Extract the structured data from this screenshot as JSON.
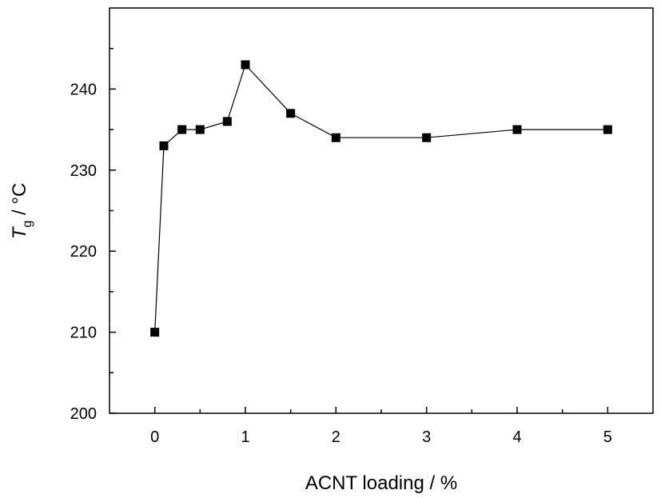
{
  "chart_data": {
    "type": "line",
    "xlabel": "ACNT loading / %",
    "ylabel_main": "T",
    "ylabel_sub": "g",
    "ylabel_unit": " / °C",
    "xlim": [
      -0.5,
      5.5
    ],
    "ylim": [
      200,
      250
    ],
    "xticks": [
      0,
      1,
      2,
      3,
      4,
      5
    ],
    "yticks": [
      200,
      210,
      220,
      230,
      240
    ],
    "grid": false,
    "marker": "square",
    "series": [
      {
        "x": [
          0,
          0.1,
          0.3,
          0.5,
          0.8,
          1,
          1.5,
          2,
          3,
          4,
          5
        ],
        "y": [
          210,
          233,
          235,
          235,
          236,
          243,
          237,
          234,
          234,
          235,
          235
        ]
      }
    ]
  }
}
